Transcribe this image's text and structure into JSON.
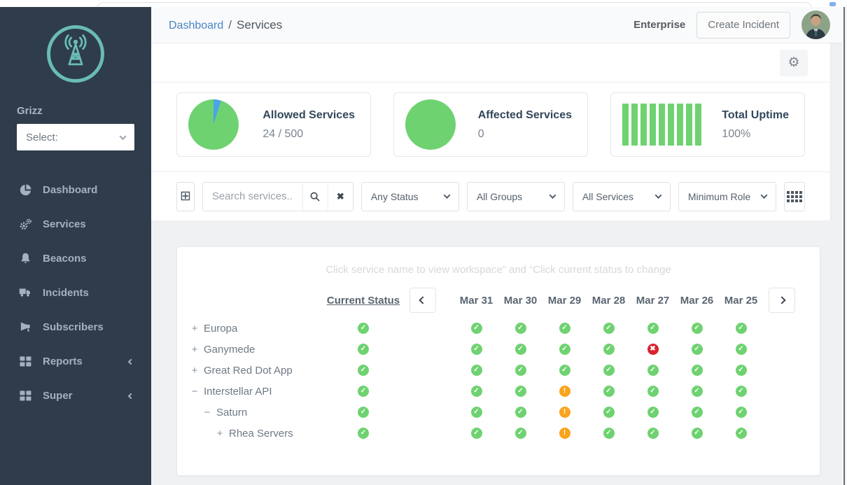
{
  "topbar": {
    "breadcrumb": {
      "link": "Dashboard",
      "separator": "/",
      "current": "Services"
    },
    "plan_label": "Enterprise",
    "create_incident_label": "Create Incident"
  },
  "sidebar": {
    "workspace_label": "Grizz",
    "select_value": "Select:",
    "items": [
      {
        "label": "Dashboard",
        "icon": "pie-chart-icon",
        "expandable": false
      },
      {
        "label": "Services",
        "icon": "gears-icon",
        "expandable": false
      },
      {
        "label": "Beacons",
        "icon": "bell-icon",
        "expandable": false
      },
      {
        "label": "Incidents",
        "icon": "truck-icon",
        "expandable": false
      },
      {
        "label": "Subscribers",
        "icon": "megaphone-icon",
        "expandable": false
      },
      {
        "label": "Reports",
        "icon": "grid-icon",
        "expandable": true
      },
      {
        "label": "Super",
        "icon": "grid-icon",
        "expandable": true
      }
    ]
  },
  "stats": [
    {
      "title": "Allowed Services",
      "value": "24 / 500",
      "chart": "pie",
      "used": 24,
      "total": 500
    },
    {
      "title": "Affected Services",
      "value": "0",
      "chart": "circle"
    },
    {
      "title": "Total Uptime",
      "value": "100%",
      "chart": "bars",
      "bars": 9
    }
  ],
  "filters": {
    "search_placeholder": "Search services...",
    "dropdowns": [
      "Any Status",
      "All Groups",
      "All Services",
      "Minimum Role"
    ]
  },
  "table": {
    "hint": "Click service name to view workspace” and “Click current status to change",
    "current_status_label": "Current Status",
    "dates": [
      "Mar 31",
      "Mar 30",
      "Mar 29",
      "Mar 28",
      "Mar 27",
      "Mar 26",
      "Mar 25"
    ],
    "rows": [
      {
        "name": "Europa",
        "level": 0,
        "expander": "+",
        "current": "ok",
        "history": [
          "ok",
          "ok",
          "ok",
          "ok",
          "ok",
          "ok",
          "ok"
        ]
      },
      {
        "name": "Ganymede",
        "level": 0,
        "expander": "+",
        "current": "ok",
        "history": [
          "ok",
          "ok",
          "ok",
          "ok",
          "error",
          "ok",
          "ok"
        ]
      },
      {
        "name": "Great Red Dot App",
        "level": 0,
        "expander": "+",
        "current": "ok",
        "history": [
          "ok",
          "ok",
          "ok",
          "ok",
          "ok",
          "ok",
          "ok"
        ]
      },
      {
        "name": "Interstellar API",
        "level": 0,
        "expander": "−",
        "current": "ok",
        "history": [
          "ok",
          "ok",
          "warning",
          "ok",
          "ok",
          "ok",
          "ok"
        ]
      },
      {
        "name": "Saturn",
        "level": 1,
        "expander": "−",
        "current": "ok",
        "history": [
          "ok",
          "ok",
          "warning",
          "ok",
          "ok",
          "ok",
          "ok"
        ]
      },
      {
        "name": "Rhea Servers",
        "level": 2,
        "expander": "+",
        "current": "ok",
        "history": [
          "ok",
          "ok",
          "warning",
          "ok",
          "ok",
          "ok",
          "ok"
        ]
      }
    ]
  },
  "colors": {
    "status_ok": "#6fd271",
    "status_warning": "#f8a41d",
    "status_error": "#d9232d",
    "pie_secondary": "#4aa4e9",
    "accent_teal": "#6abcb3",
    "link_blue": "#4a86c5",
    "sidebar_bg": "#2e3c4b"
  }
}
